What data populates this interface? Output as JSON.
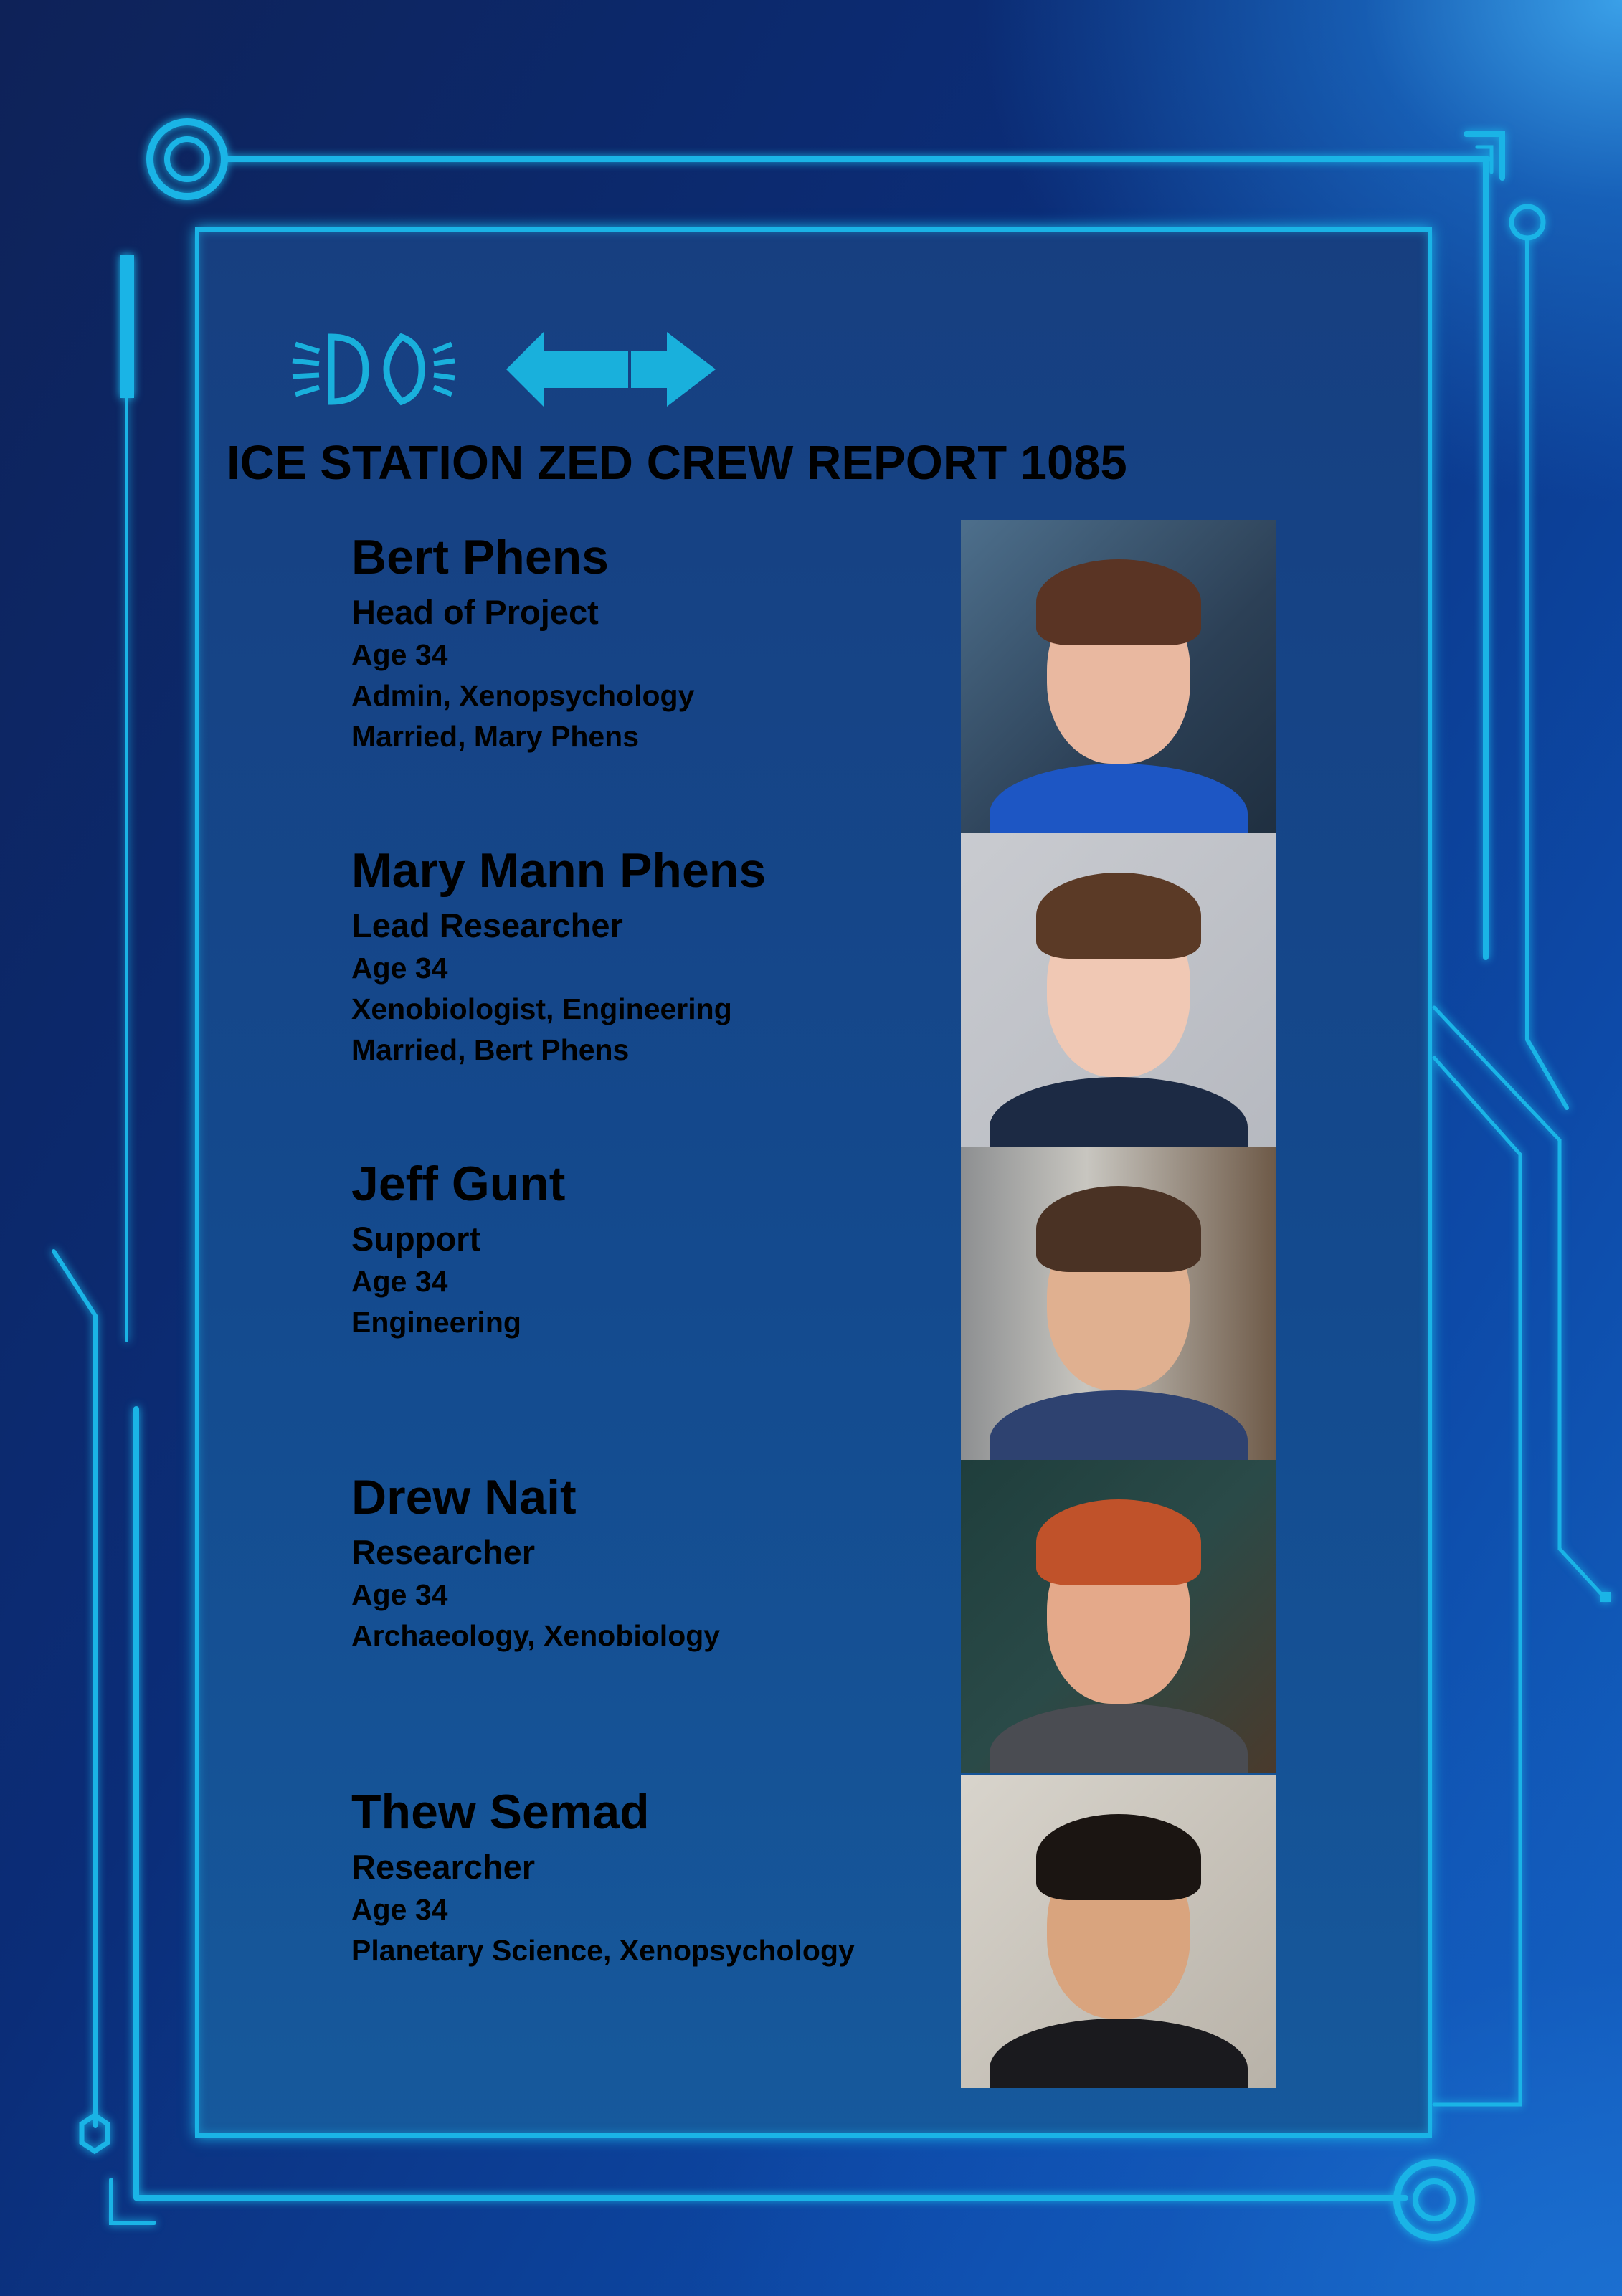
{
  "report": {
    "title": "ICE STATION ZED CREW REPORT 1085"
  },
  "toolbar": {
    "icons": [
      "headlight-icon",
      "arrow-left-icon",
      "arrow-right-icon"
    ]
  },
  "colors": {
    "accent": "#1ab4e6",
    "panel": "#173f80",
    "text": "#000000"
  },
  "crew": [
    {
      "name": "Bert Phens",
      "role": "Head of Project",
      "details": [
        "Age 34",
        "Admin, Xenopsychology",
        "Married, Mary Phens"
      ]
    },
    {
      "name": "Mary Mann Phens",
      "role": "Lead Researcher",
      "details": [
        "Age 34",
        "Xenobiologist, Engineering",
        "Married, Bert Phens"
      ]
    },
    {
      "name": "Jeff Gunt",
      "role": "Support",
      "details": [
        "Age 34",
        "Engineering"
      ]
    },
    {
      "name": "Drew Nait",
      "role": "Researcher",
      "details": [
        "Age 34",
        "Archaeology, Xenobiology"
      ]
    },
    {
      "name": "Thew Semad",
      "role": "Researcher",
      "details": [
        "Age 34",
        "Planetary Science, Xenopsychology"
      ]
    }
  ]
}
